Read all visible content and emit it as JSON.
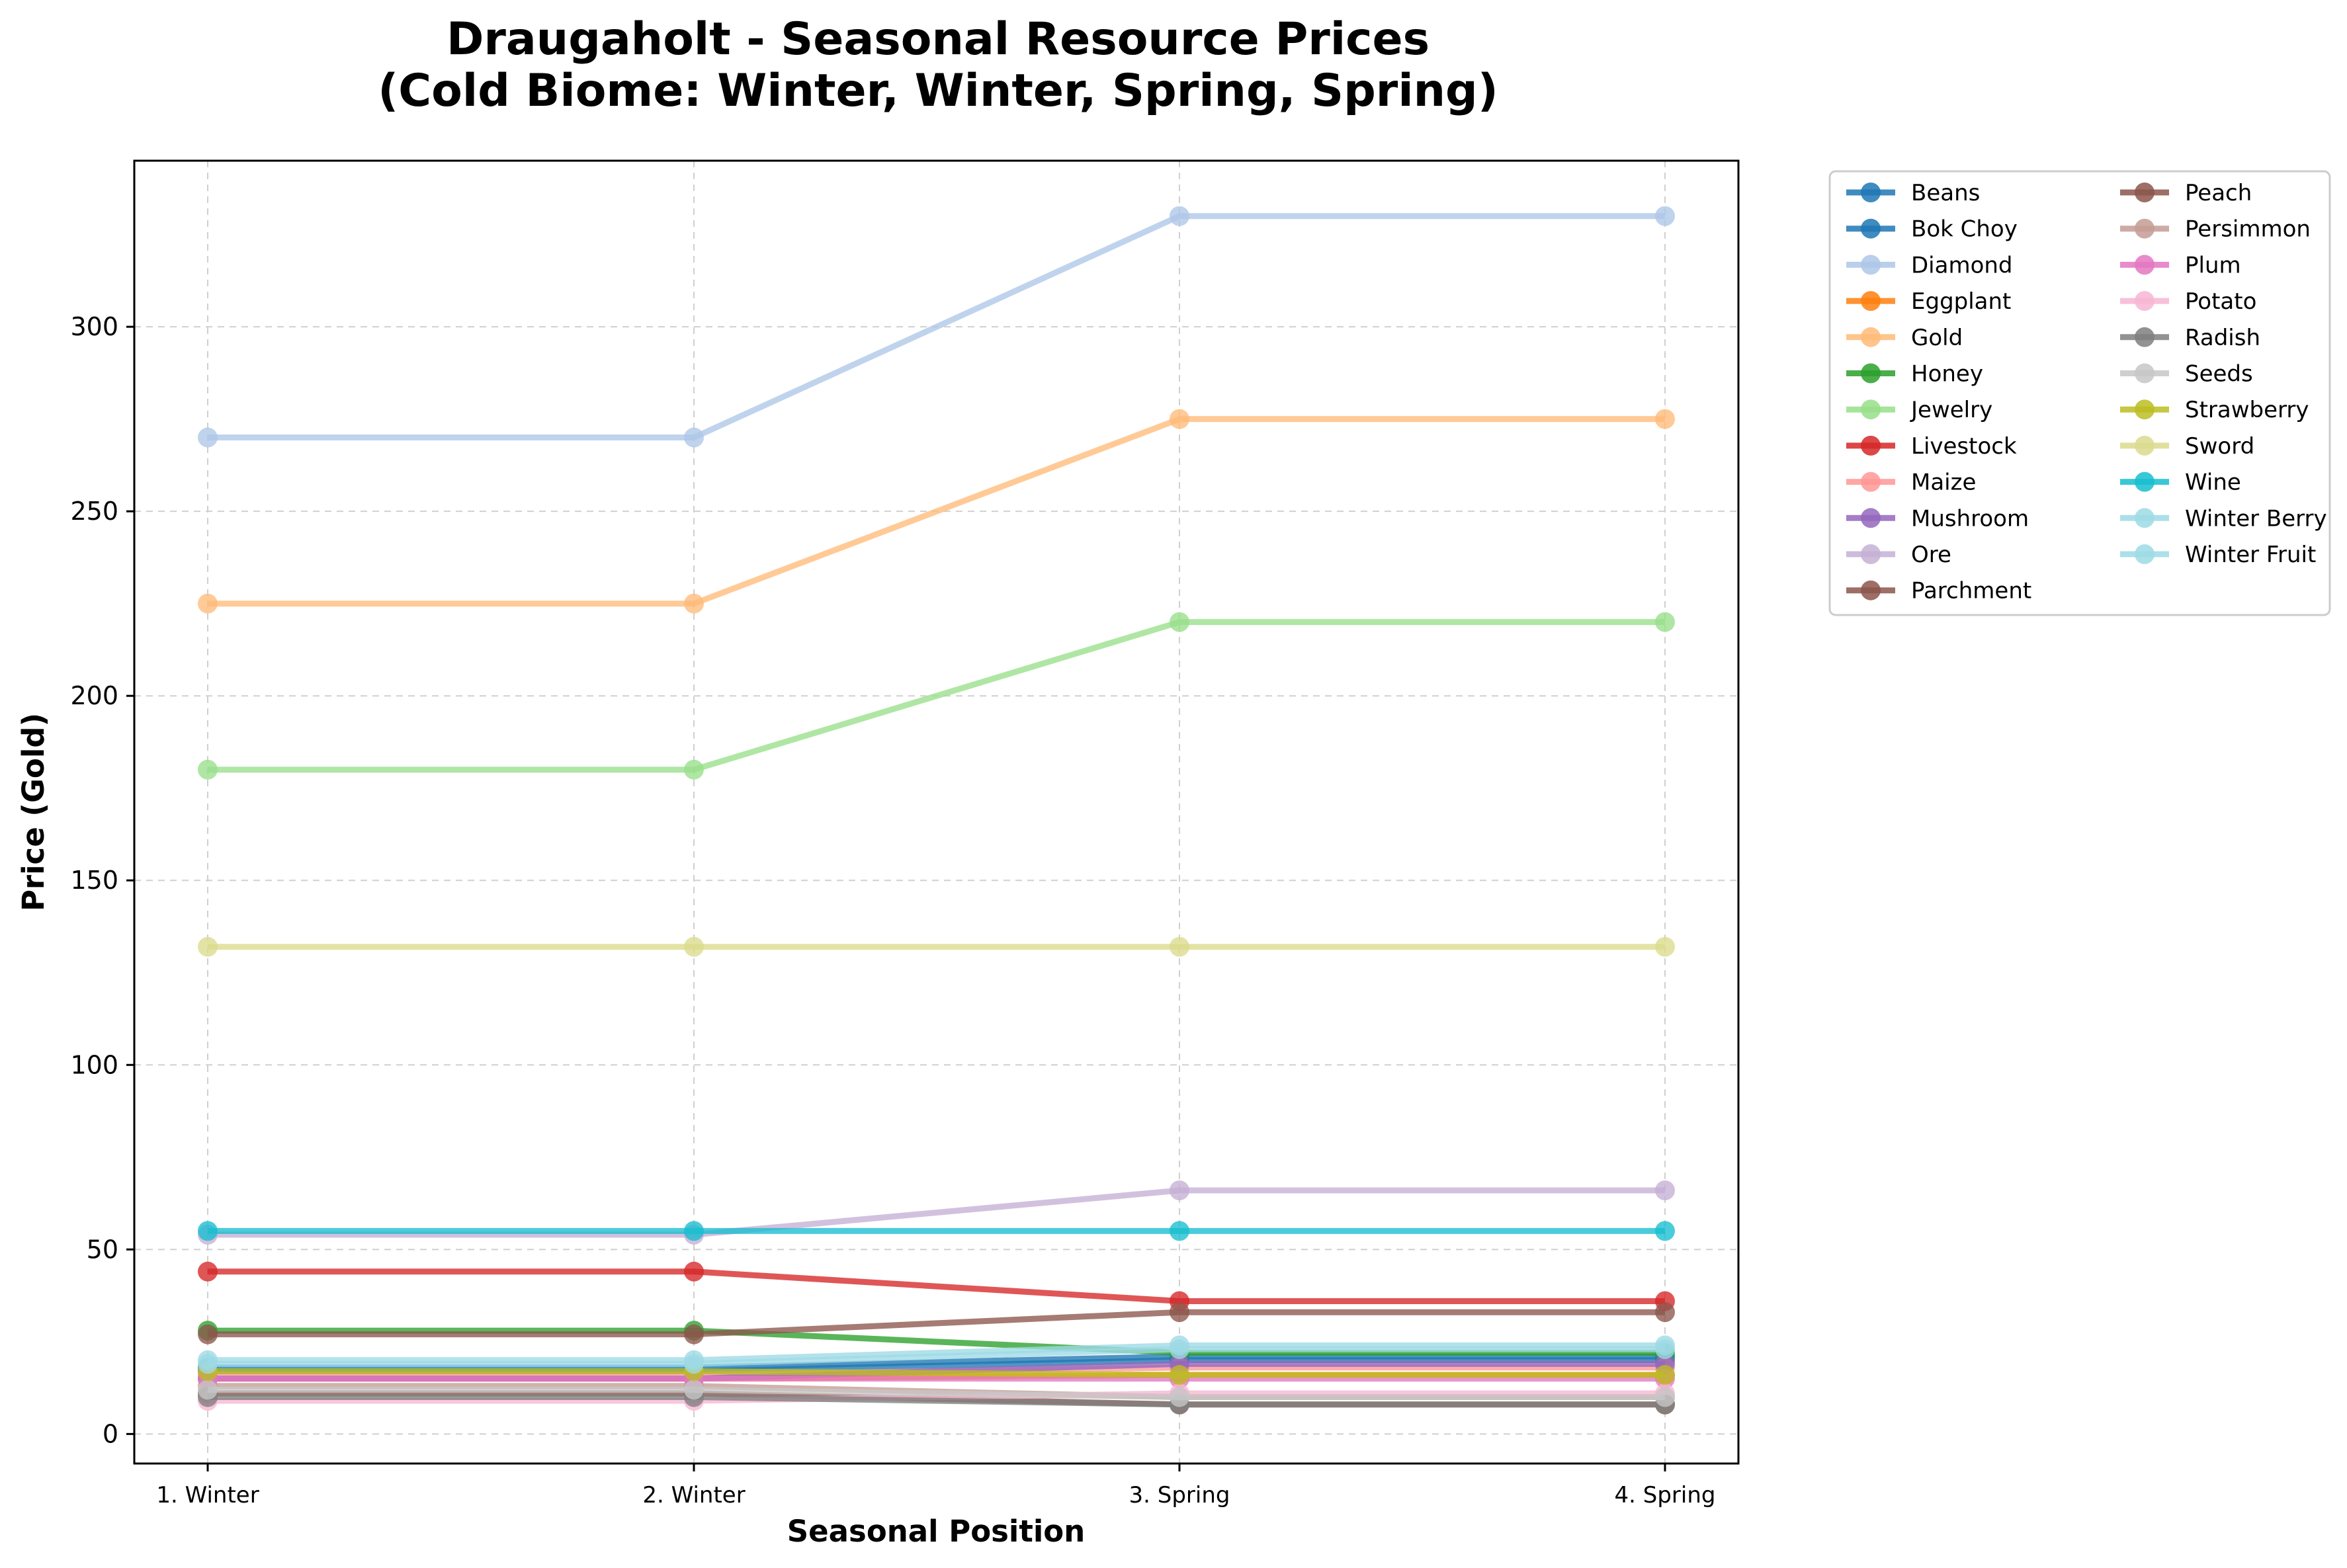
{
  "chart_data": {
    "type": "line",
    "title_line1": "Draugaholt - Seasonal Resource Prices",
    "title_line2": "(Cold Biome: Winter, Winter, Spring, Spring)",
    "xlabel": "Seasonal Position",
    "ylabel": "Price (Gold)",
    "categories": [
      "1. Winter",
      "2. Winter",
      "3. Spring",
      "4. Spring"
    ],
    "ylim": [
      -8,
      345
    ],
    "yticks": [
      0,
      50,
      100,
      150,
      200,
      250,
      300
    ],
    "grid": true,
    "legend_position": "outside-right",
    "series": [
      {
        "name": "Beans",
        "color": "#1f77b4",
        "values": [
          17,
          17,
          20,
          20
        ]
      },
      {
        "name": "Bok Choy",
        "color": "#1f77b4",
        "values": [
          18,
          18,
          21,
          21
        ]
      },
      {
        "name": "Diamond",
        "color": "#aec7e8",
        "values": [
          270,
          270,
          330,
          330
        ]
      },
      {
        "name": "Eggplant",
        "color": "#ff7f0e",
        "values": [
          15,
          15,
          16,
          16
        ]
      },
      {
        "name": "Gold",
        "color": "#ffbb78",
        "values": [
          225,
          225,
          275,
          275
        ]
      },
      {
        "name": "Honey",
        "color": "#2ca02c",
        "values": [
          28,
          28,
          22,
          22
        ]
      },
      {
        "name": "Jewelry",
        "color": "#98df8a",
        "values": [
          180,
          180,
          220,
          220
        ]
      },
      {
        "name": "Livestock",
        "color": "#d62728",
        "values": [
          44,
          44,
          36,
          36
        ]
      },
      {
        "name": "Maize",
        "color": "#ff9896",
        "values": [
          16,
          16,
          18,
          18
        ]
      },
      {
        "name": "Mushroom",
        "color": "#9467bd",
        "values": [
          15,
          15,
          19,
          19
        ]
      },
      {
        "name": "Ore",
        "color": "#c5b0d5",
        "values": [
          54,
          54,
          66,
          66
        ]
      },
      {
        "name": "Parchment",
        "color": "#8c564b",
        "values": [
          27,
          27,
          33,
          33
        ]
      },
      {
        "name": "Peach",
        "color": "#8c564b",
        "values": [
          11,
          11,
          8,
          8
        ]
      },
      {
        "name": "Persimmon",
        "color": "#c49c94",
        "values": [
          13,
          13,
          10,
          10
        ]
      },
      {
        "name": "Plum",
        "color": "#e377c2",
        "values": [
          15,
          15,
          15,
          15
        ]
      },
      {
        "name": "Potato",
        "color": "#f7b6d2",
        "values": [
          9,
          9,
          11,
          11
        ]
      },
      {
        "name": "Radish",
        "color": "#7f7f7f",
        "values": [
          10,
          10,
          8,
          8
        ]
      },
      {
        "name": "Seeds",
        "color": "#c7c7c7",
        "values": [
          12,
          12,
          10,
          10
        ]
      },
      {
        "name": "Strawberry",
        "color": "#bcbd22",
        "values": [
          17,
          17,
          16,
          16
        ]
      },
      {
        "name": "Sword",
        "color": "#dbdb8d",
        "values": [
          132,
          132,
          132,
          132
        ]
      },
      {
        "name": "Wine",
        "color": "#17becf",
        "values": [
          55,
          55,
          55,
          55
        ]
      },
      {
        "name": "Winter Berry",
        "color": "#9edae5",
        "values": [
          20,
          20,
          24,
          24
        ]
      },
      {
        "name": "Winter Fruit",
        "color": "#9edae5",
        "values": [
          19,
          19,
          23,
          23
        ]
      }
    ]
  }
}
